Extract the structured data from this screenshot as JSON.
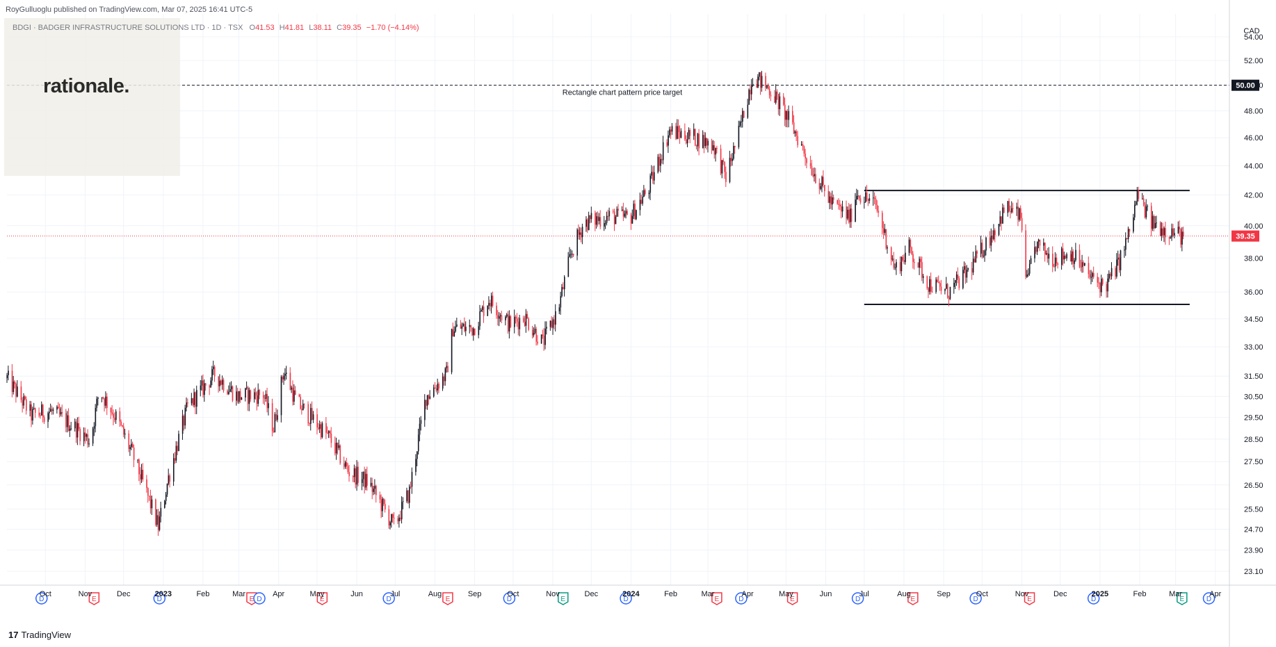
{
  "header": {
    "publisher": "RoyGulluoglu published on TradingView.com, Mar 07, 2025 16:41 UTC-5",
    "symbol": "BDGI · BADGER INFRASTRUCTURE SOLUTIONS LTD · 1D · TSX",
    "ohlc": {
      "o_label": "O",
      "o": "41.53",
      "h_label": "H",
      "h": "41.81",
      "l_label": "L",
      "l": "38.11",
      "c_label": "C",
      "c": "39.35",
      "change": "−1.70 (−4.14%)"
    }
  },
  "logo": {
    "text": "rationale."
  },
  "footer": {
    "brand": "TradingView",
    "mark": "17"
  },
  "colors": {
    "up": "#131722",
    "down": "#f23645",
    "grid": "#f0f3fa",
    "axis": "#787b86"
  },
  "chart_data": {
    "type": "candlestick",
    "currency": "CAD",
    "y_ticks": [
      "54.00",
      "52.00",
      "50.00",
      "48.00",
      "46.00",
      "44.00",
      "42.00",
      "40.00",
      "38.00",
      "36.00",
      "34.50",
      "33.00",
      "31.50",
      "30.50",
      "29.50",
      "28.50",
      "27.50",
      "26.50",
      "25.50",
      "24.70",
      "23.90",
      "23.10"
    ],
    "y_scale": "log",
    "ylim": [
      22.6,
      56.0
    ],
    "x_ticks": [
      "Oct",
      "Nov",
      "Dec",
      "2023",
      "Feb",
      "Mar",
      "Apr",
      "May",
      "Jun",
      "Jul",
      "Aug",
      "Sep",
      "Oct",
      "Nov",
      "Dec",
      "2024",
      "Feb",
      "Mar",
      "Apr",
      "May",
      "Jun",
      "Jul",
      "Aug",
      "Sep",
      "Oct",
      "Nov",
      "Dec",
      "2025",
      "Feb",
      "Mar",
      "Apr"
    ],
    "price_path": [
      [
        "2022-09-01",
        31.4
      ],
      [
        "2022-09-20",
        29.6
      ],
      [
        "2022-10-05",
        29.8
      ],
      [
        "2022-10-25",
        29.0
      ],
      [
        "2022-11-05",
        28.4
      ],
      [
        "2022-11-12",
        30.8
      ],
      [
        "2022-11-25",
        29.5
      ],
      [
        "2022-12-08",
        27.8
      ],
      [
        "2022-12-28",
        24.8
      ],
      [
        "2023-01-05",
        26.8
      ],
      [
        "2023-01-20",
        30.0
      ],
      [
        "2023-02-10",
        31.6
      ],
      [
        "2023-02-28",
        30.5
      ],
      [
        "2023-03-20",
        30.6
      ],
      [
        "2023-03-28",
        29.0
      ],
      [
        "2023-04-05",
        31.8
      ],
      [
        "2023-04-15",
        30.2
      ],
      [
        "2023-04-28",
        29.4
      ],
      [
        "2023-05-10",
        28.6
      ],
      [
        "2023-05-25",
        27.1
      ],
      [
        "2023-06-10",
        26.6
      ],
      [
        "2023-06-30",
        24.8
      ],
      [
        "2023-07-12",
        26.2
      ],
      [
        "2023-07-25",
        30.5
      ],
      [
        "2023-08-10",
        31.6
      ],
      [
        "2023-08-15",
        34.0
      ],
      [
        "2023-08-31",
        34.0
      ],
      [
        "2023-09-12",
        35.6
      ],
      [
        "2023-09-28",
        34.2
      ],
      [
        "2023-10-10",
        34.6
      ],
      [
        "2023-10-24",
        33.2
      ],
      [
        "2023-11-05",
        35.0
      ],
      [
        "2023-11-15",
        38.2
      ],
      [
        "2023-11-25",
        40.2
      ],
      [
        "2023-12-15",
        40.6
      ],
      [
        "2023-12-31",
        40.5
      ],
      [
        "2024-01-15",
        42.5
      ],
      [
        "2024-01-31",
        46.5
      ],
      [
        "2024-02-20",
        46.0
      ],
      [
        "2024-03-05",
        45.5
      ],
      [
        "2024-03-15",
        43.2
      ],
      [
        "2024-03-25",
        46.3
      ],
      [
        "2024-04-05",
        50.8
      ],
      [
        "2024-04-20",
        49.5
      ],
      [
        "2024-05-05",
        47.0
      ],
      [
        "2024-05-20",
        44.0
      ],
      [
        "2024-06-05",
        41.5
      ],
      [
        "2024-06-20",
        40.5
      ],
      [
        "2024-06-25",
        42.2
      ],
      [
        "2024-07-10",
        41.3
      ],
      [
        "2024-07-25",
        37.3
      ],
      [
        "2024-08-05",
        38.6
      ],
      [
        "2024-08-20",
        36.5
      ],
      [
        "2024-09-05",
        36.0
      ],
      [
        "2024-09-20",
        37.2
      ],
      [
        "2024-10-05",
        39.0
      ],
      [
        "2024-10-20",
        41.2
      ],
      [
        "2024-10-31",
        40.5
      ],
      [
        "2024-11-05",
        36.5
      ],
      [
        "2024-11-12",
        38.8
      ],
      [
        "2024-11-25",
        38.0
      ],
      [
        "2024-12-10",
        38.3
      ],
      [
        "2024-12-25",
        36.8
      ],
      [
        "2025-01-05",
        36.3
      ],
      [
        "2025-01-15",
        37.6
      ],
      [
        "2025-01-25",
        39.8
      ],
      [
        "2025-01-30",
        42.0
      ],
      [
        "2025-02-10",
        40.2
      ],
      [
        "2025-02-20",
        39.8
      ],
      [
        "2025-03-07",
        39.35
      ]
    ],
    "levels": [
      {
        "name": "Rectangle chart pattern price target",
        "value": 50.0,
        "style": "dashed",
        "label": "50.00"
      },
      {
        "name": "rectangle-top",
        "value": 42.3,
        "from": "2024-07-01",
        "to": "2025-03-12"
      },
      {
        "name": "rectangle-bottom",
        "value": 35.3,
        "from": "2024-07-01",
        "to": "2025-03-12"
      }
    ],
    "last_price": {
      "value": 39.35,
      "label": "39.35"
    },
    "annotation": "Rectangle chart pattern price target",
    "events": [
      [
        "2022-09-28",
        "D"
      ],
      [
        "2022-11-08",
        "E"
      ],
      [
        "2022-12-29",
        "D"
      ],
      [
        "2023-03-11",
        "E"
      ],
      [
        "2023-03-17",
        "D"
      ],
      [
        "2023-05-05",
        "E"
      ],
      [
        "2023-06-26",
        "D"
      ],
      [
        "2023-08-11",
        "E"
      ],
      [
        "2023-09-28",
        "D"
      ],
      [
        "2023-11-09",
        "E+"
      ],
      [
        "2023-12-28",
        "D"
      ],
      [
        "2024-03-08",
        "E"
      ],
      [
        "2024-03-27",
        "D"
      ],
      [
        "2024-05-06",
        "E"
      ],
      [
        "2024-06-26",
        "D"
      ],
      [
        "2024-08-08",
        "E"
      ],
      [
        "2024-09-26",
        "D"
      ],
      [
        "2024-11-07",
        "E"
      ],
      [
        "2024-12-27",
        "D"
      ],
      [
        "2025-03-06",
        "E+"
      ],
      [
        "2025-03-27",
        "D"
      ]
    ]
  }
}
